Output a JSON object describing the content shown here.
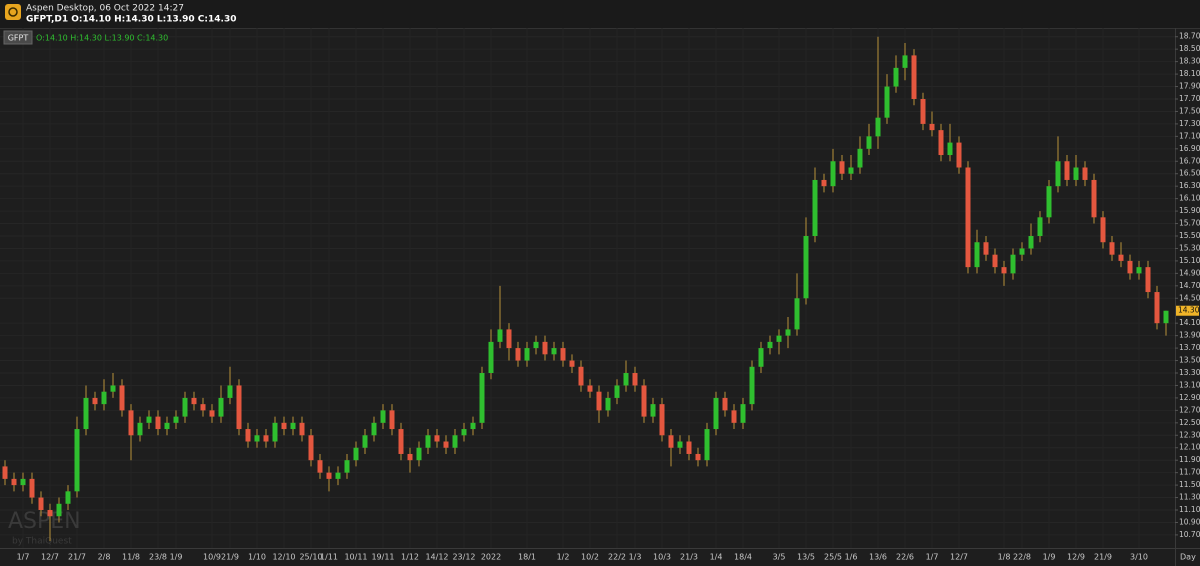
{
  "header": {
    "app_title": "Aspen Desktop, 06 Oct 2022 14:27",
    "symbol_line": "GFPT,D1 O:14.10 H:14.30 L:13.90 C:14.30"
  },
  "chart_data": {
    "type": "candlestick",
    "symbol": "GFPT",
    "ohlc_text": "O:14.10 H:14.30 L:13.90 C:14.30",
    "x_unit": "Day",
    "watermark": {
      "brand": "ASPEN",
      "by": "by ThaiQuest"
    },
    "up_color": "#2fbf2f",
    "down_color": "#e4573f",
    "wick_color": "#b8923a",
    "grid": true,
    "ylim": [
      10.49,
      18.84
    ],
    "yticks": [
      {
        "value": 10.7,
        "label": "10.70"
      },
      {
        "value": 10.9,
        "label": "10.90"
      },
      {
        "value": 11.1,
        "label": "11.10"
      },
      {
        "value": 11.3,
        "label": "11.30"
      },
      {
        "value": 11.5,
        "label": "11.50"
      },
      {
        "value": 11.7,
        "label": "11.70"
      },
      {
        "value": 11.9,
        "label": "11.90"
      },
      {
        "value": 12.1,
        "label": "12.10"
      },
      {
        "value": 12.3,
        "label": "12.30"
      },
      {
        "value": 12.5,
        "label": "12.50"
      },
      {
        "value": 12.7,
        "label": "12.70"
      },
      {
        "value": 12.9,
        "label": "12.90"
      },
      {
        "value": 13.1,
        "label": "13.10"
      },
      {
        "value": 13.3,
        "label": "13.30"
      },
      {
        "value": 13.5,
        "label": "13.50"
      },
      {
        "value": 13.7,
        "label": "13.70"
      },
      {
        "value": 13.9,
        "label": "13.90"
      },
      {
        "value": 14.1,
        "label": "14.10"
      },
      {
        "value": 14.5,
        "label": "14.50"
      },
      {
        "value": 14.7,
        "label": "14.70"
      },
      {
        "value": 14.9,
        "label": "14.90"
      },
      {
        "value": 15.1,
        "label": "15.10"
      },
      {
        "value": 15.3,
        "label": "15.30"
      },
      {
        "value": 15.5,
        "label": "15.50"
      },
      {
        "value": 15.7,
        "label": "15.70"
      },
      {
        "value": 15.9,
        "label": "15.90"
      },
      {
        "value": 16.1,
        "label": "16.10"
      },
      {
        "value": 16.3,
        "label": "16.30"
      },
      {
        "value": 16.5,
        "label": "16.50"
      },
      {
        "value": 16.7,
        "label": "16.70"
      },
      {
        "value": 16.9,
        "label": "16.90"
      },
      {
        "value": 17.1,
        "label": "17.10"
      },
      {
        "value": 17.3,
        "label": "17.30"
      },
      {
        "value": 17.5,
        "label": "17.50"
      },
      {
        "value": 17.7,
        "label": "17.70"
      },
      {
        "value": 17.9,
        "label": "17.90"
      },
      {
        "value": 18.1,
        "label": "18.10"
      },
      {
        "value": 18.3,
        "label": "18.30"
      },
      {
        "value": 18.5,
        "label": "18.50"
      },
      {
        "value": 18.7,
        "label": "18.70"
      }
    ],
    "last_price": {
      "value": 14.3,
      "label": "14.30"
    },
    "categories": [
      null,
      null,
      "1/7",
      null,
      null,
      "12/7",
      null,
      null,
      "21/7",
      null,
      null,
      "2/8",
      null,
      null,
      "11/8",
      null,
      null,
      "23/8",
      null,
      "1/9",
      null,
      null,
      null,
      "10/9",
      null,
      "21/9",
      null,
      null,
      "1/10",
      null,
      null,
      "12/10",
      null,
      null,
      "25/10",
      null,
      "1/11",
      null,
      null,
      "10/11",
      null,
      null,
      "19/11",
      null,
      null,
      "1/12",
      null,
      null,
      "14/12",
      null,
      null,
      "23/12",
      null,
      null,
      "2022",
      null,
      null,
      null,
      "18/1",
      null,
      null,
      null,
      "1/2",
      null,
      null,
      "10/2",
      null,
      null,
      "22/2",
      null,
      "1/3",
      null,
      null,
      "10/3",
      null,
      null,
      "21/3",
      null,
      null,
      "1/4",
      null,
      null,
      "18/4",
      null,
      null,
      null,
      "3/5",
      null,
      null,
      "13/5",
      null,
      null,
      "25/5",
      null,
      "1/6",
      null,
      null,
      "13/6",
      null,
      null,
      "22/6",
      null,
      null,
      "1/7",
      null,
      null,
      "12/7",
      null,
      null,
      null,
      null,
      "1/8",
      null,
      "22/8",
      null,
      null,
      "1/9",
      null,
      null,
      "12/9",
      null,
      null,
      "21/9",
      null,
      null,
      null,
      "3/10",
      null,
      null,
      null
    ],
    "open": [
      11.8,
      11.6,
      11.5,
      11.6,
      11.3,
      11.1,
      11.0,
      11.2,
      11.4,
      12.4,
      12.9,
      12.8,
      13.0,
      13.1,
      12.7,
      12.3,
      12.5,
      12.6,
      12.4,
      12.5,
      12.6,
      12.9,
      12.8,
      12.7,
      12.6,
      12.9,
      13.1,
      12.4,
      12.2,
      12.3,
      12.2,
      12.5,
      12.4,
      12.5,
      12.3,
      11.9,
      11.7,
      11.6,
      11.7,
      11.9,
      12.1,
      12.3,
      12.5,
      12.7,
      12.4,
      12.0,
      11.9,
      12.1,
      12.3,
      12.2,
      12.1,
      12.3,
      12.4,
      12.5,
      13.3,
      13.8,
      14.0,
      13.7,
      13.5,
      13.7,
      13.8,
      13.6,
      13.7,
      13.5,
      13.4,
      13.1,
      13.0,
      12.7,
      12.9,
      13.1,
      13.3,
      13.1,
      12.6,
      12.8,
      12.3,
      12.1,
      12.2,
      12.0,
      11.9,
      12.4,
      12.9,
      12.7,
      12.5,
      12.8,
      13.4,
      13.7,
      13.8,
      13.9,
      14.0,
      14.5,
      15.5,
      16.4,
      16.3,
      16.7,
      16.5,
      16.6,
      16.9,
      17.1,
      17.4,
      17.9,
      18.2,
      18.4,
      17.7,
      17.3,
      17.2,
      16.8,
      17.0,
      16.6,
      15.0,
      15.4,
      15.2,
      15.0,
      14.9,
      15.2,
      15.3,
      15.5,
      15.8,
      16.3,
      16.7,
      16.4,
      16.6,
      16.4,
      15.8,
      15.4,
      15.2,
      15.1,
      14.9,
      15.0,
      14.6,
      14.1
    ],
    "high": [
      11.9,
      11.7,
      11.7,
      11.7,
      11.4,
      11.2,
      11.3,
      11.5,
      12.6,
      13.1,
      13.0,
      13.2,
      13.3,
      13.2,
      12.8,
      12.6,
      12.7,
      12.7,
      12.6,
      12.7,
      13.0,
      13.0,
      12.9,
      12.8,
      13.1,
      13.4,
      13.2,
      12.5,
      12.4,
      12.4,
      12.6,
      12.6,
      12.6,
      12.6,
      12.4,
      12.0,
      11.8,
      11.8,
      12.0,
      12.2,
      12.4,
      12.6,
      12.8,
      12.8,
      12.5,
      12.1,
      12.2,
      12.4,
      12.4,
      12.3,
      12.4,
      12.5,
      12.6,
      13.4,
      14.0,
      14.7,
      14.1,
      13.8,
      13.8,
      13.9,
      13.9,
      13.8,
      13.8,
      13.6,
      13.5,
      13.2,
      13.1,
      13.0,
      13.2,
      13.5,
      13.4,
      13.2,
      12.9,
      12.9,
      12.4,
      12.3,
      12.3,
      12.1,
      12.5,
      13.0,
      13.0,
      12.8,
      12.9,
      13.5,
      13.8,
      13.9,
      14.0,
      14.2,
      14.9,
      15.8,
      16.6,
      16.5,
      16.9,
      16.8,
      16.8,
      17.1,
      17.3,
      18.7,
      18.1,
      18.4,
      18.6,
      18.5,
      17.8,
      17.5,
      17.3,
      17.3,
      17.1,
      16.7,
      15.6,
      15.5,
      15.3,
      15.1,
      15.3,
      15.4,
      15.7,
      15.9,
      16.4,
      17.1,
      16.8,
      16.8,
      16.7,
      16.5,
      15.9,
      15.5,
      15.4,
      15.2,
      15.1,
      15.1,
      14.7,
      14.3
    ],
    "low": [
      11.5,
      11.4,
      11.4,
      11.2,
      11.0,
      10.6,
      10.9,
      11.1,
      11.3,
      12.3,
      12.7,
      12.7,
      12.9,
      12.6,
      11.9,
      12.2,
      12.4,
      12.3,
      12.3,
      12.4,
      12.5,
      12.7,
      12.6,
      12.5,
      12.5,
      12.8,
      12.3,
      12.1,
      12.1,
      12.1,
      12.1,
      12.3,
      12.3,
      12.2,
      11.8,
      11.6,
      11.4,
      11.5,
      11.6,
      11.8,
      12.0,
      12.2,
      12.4,
      12.3,
      11.9,
      11.7,
      11.8,
      12.0,
      12.1,
      12.0,
      12.0,
      12.2,
      12.3,
      12.4,
      13.2,
      13.7,
      13.5,
      13.4,
      13.4,
      13.6,
      13.5,
      13.5,
      13.4,
      13.3,
      13.0,
      12.9,
      12.5,
      12.6,
      12.8,
      13.0,
      13.0,
      12.5,
      12.5,
      12.2,
      11.8,
      12.0,
      11.9,
      11.8,
      11.8,
      12.3,
      12.6,
      12.4,
      12.4,
      12.7,
      13.3,
      13.6,
      13.6,
      13.7,
      13.9,
      14.4,
      15.4,
      16.2,
      16.2,
      16.4,
      16.4,
      16.5,
      16.8,
      16.9,
      17.3,
      17.8,
      18.0,
      17.6,
      17.2,
      17.1,
      16.7,
      16.7,
      16.5,
      14.9,
      14.9,
      15.1,
      14.9,
      14.7,
      14.8,
      15.1,
      15.2,
      15.4,
      15.7,
      16.2,
      16.3,
      16.3,
      16.3,
      15.7,
      15.3,
      15.1,
      15.0,
      14.8,
      14.8,
      14.5,
      14.0,
      13.9
    ],
    "close": [
      11.6,
      11.5,
      11.6,
      11.3,
      11.1,
      11.0,
      11.2,
      11.4,
      12.4,
      12.9,
      12.8,
      13.0,
      13.1,
      12.7,
      12.3,
      12.5,
      12.6,
      12.4,
      12.5,
      12.6,
      12.9,
      12.8,
      12.7,
      12.6,
      12.9,
      13.1,
      12.4,
      12.2,
      12.3,
      12.2,
      12.5,
      12.4,
      12.5,
      12.3,
      11.9,
      11.7,
      11.6,
      11.7,
      11.9,
      12.1,
      12.3,
      12.5,
      12.7,
      12.4,
      12.0,
      11.9,
      12.1,
      12.3,
      12.2,
      12.1,
      12.3,
      12.4,
      12.5,
      13.3,
      13.8,
      14.0,
      13.7,
      13.5,
      13.7,
      13.8,
      13.6,
      13.7,
      13.5,
      13.4,
      13.1,
      13.0,
      12.7,
      12.9,
      13.1,
      13.3,
      13.1,
      12.6,
      12.8,
      12.3,
      12.1,
      12.2,
      12.0,
      11.9,
      12.4,
      12.9,
      12.7,
      12.5,
      12.8,
      13.4,
      13.7,
      13.8,
      13.9,
      14.0,
      14.5,
      15.5,
      16.4,
      16.3,
      16.7,
      16.5,
      16.6,
      16.9,
      17.1,
      17.4,
      17.9,
      18.2,
      18.4,
      17.7,
      17.3,
      17.2,
      16.8,
      17.0,
      16.6,
      15.0,
      15.4,
      15.2,
      15.0,
      14.9,
      15.2,
      15.3,
      15.5,
      15.8,
      16.3,
      16.7,
      16.4,
      16.6,
      16.4,
      15.8,
      15.4,
      15.2,
      15.1,
      14.9,
      15.0,
      14.6,
      14.1,
      14.3
    ]
  }
}
